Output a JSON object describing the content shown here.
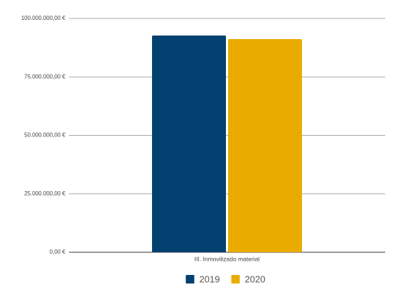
{
  "chart_data": {
    "type": "bar",
    "categories": [
      "III. Inmovilizado material"
    ],
    "series": [
      {
        "name": "2019",
        "color": "#01406f",
        "values": [
          92700000
        ]
      },
      {
        "name": "2020",
        "color": "#eaab00",
        "values": [
          91200000
        ]
      }
    ],
    "ylim": [
      0,
      100000000
    ],
    "yticks": [
      {
        "value": 0,
        "label": "0,00 €"
      },
      {
        "value": 25000000,
        "label": "25.000.000,00 €"
      },
      {
        "value": 50000000,
        "label": "50.000.000,00 €"
      },
      {
        "value": 75000000,
        "label": "75.000.000,00 €"
      },
      {
        "value": 100000000,
        "label": "100.000.000,00 €"
      }
    ],
    "grid": true,
    "legend": "bottom"
  }
}
